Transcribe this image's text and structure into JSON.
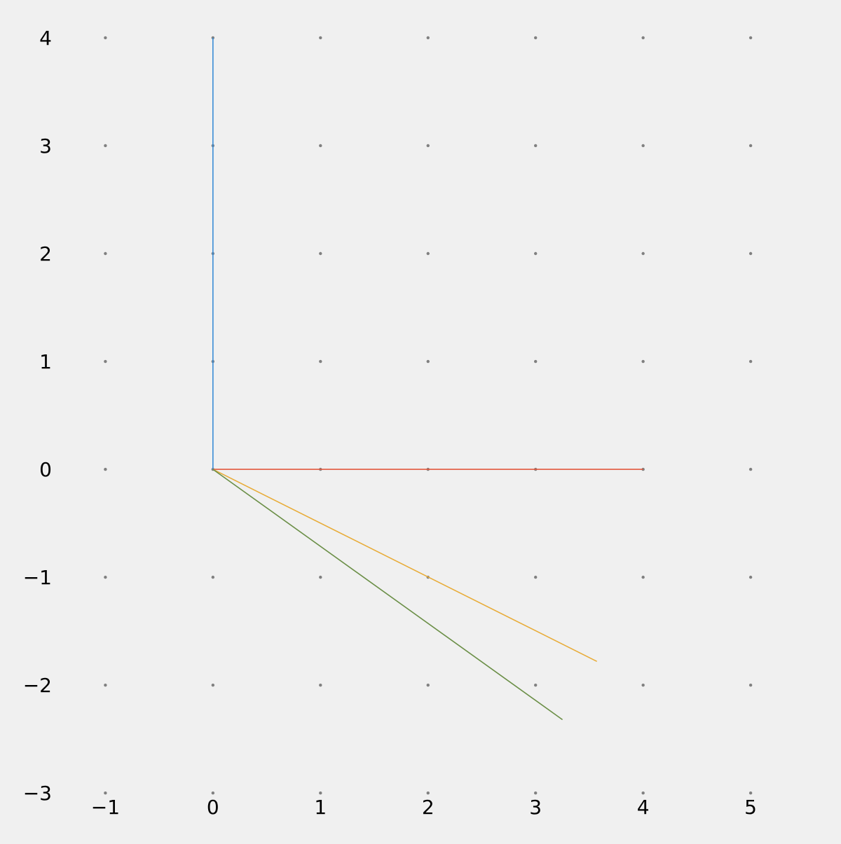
{
  "chart_data": {
    "type": "line",
    "title": "",
    "xlabel": "",
    "ylabel": "",
    "xlim": [
      -1.98,
      5.84
    ],
    "ylim": [
      -3.44,
      4.35
    ],
    "x_ticks": [
      -1,
      0,
      1,
      2,
      3,
      4,
      5
    ],
    "y_ticks": [
      -3,
      -2,
      -1,
      0,
      1,
      2,
      3,
      4
    ],
    "x_tick_labels": [
      "−1",
      "0",
      "1",
      "2",
      "3",
      "4",
      "5"
    ],
    "y_tick_labels": [
      "−3",
      "−2",
      "−1",
      "0",
      "1",
      "2",
      "3",
      "4"
    ],
    "grid": "dots at integer lattice points",
    "axis_lines": false,
    "background": "#f0f0f0",
    "grid_dot_color": "#808080",
    "series": [
      {
        "color": "#3a8dd6",
        "points": [
          [
            0,
            0
          ],
          [
            0,
            4
          ]
        ]
      },
      {
        "color": "#e2583e",
        "points": [
          [
            0,
            0
          ],
          [
            4,
            0
          ]
        ]
      },
      {
        "color": "#e8ac39",
        "points": [
          [
            0,
            0
          ],
          [
            3.57,
            -1.78
          ]
        ]
      },
      {
        "color": "#6b8f47",
        "points": [
          [
            0,
            0
          ],
          [
            3.25,
            -2.32
          ]
        ]
      }
    ]
  }
}
